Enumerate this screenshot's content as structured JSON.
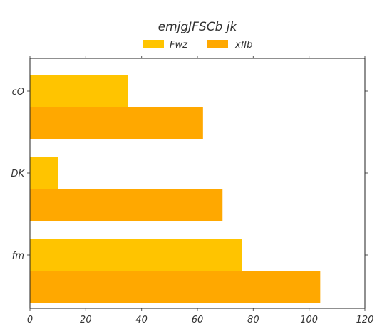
{
  "chart_data": {
    "type": "bar",
    "orientation": "horizontal",
    "title": "emjgJFSCb  jk",
    "categories": [
      "cO",
      "DK",
      "fm"
    ],
    "series": [
      {
        "name": "Fwz",
        "color": "#FFC400",
        "values": [
          35,
          10,
          76
        ]
      },
      {
        "name": "xfIb",
        "color": "#FFA800",
        "values": [
          62,
          69,
          104
        ]
      }
    ],
    "xlim": [
      0,
      120
    ],
    "xticks": [
      0,
      20,
      40,
      60,
      80,
      100,
      120
    ],
    "xlabel": "",
    "ylabel": "",
    "grid": false,
    "legend_position": "top-center"
  }
}
